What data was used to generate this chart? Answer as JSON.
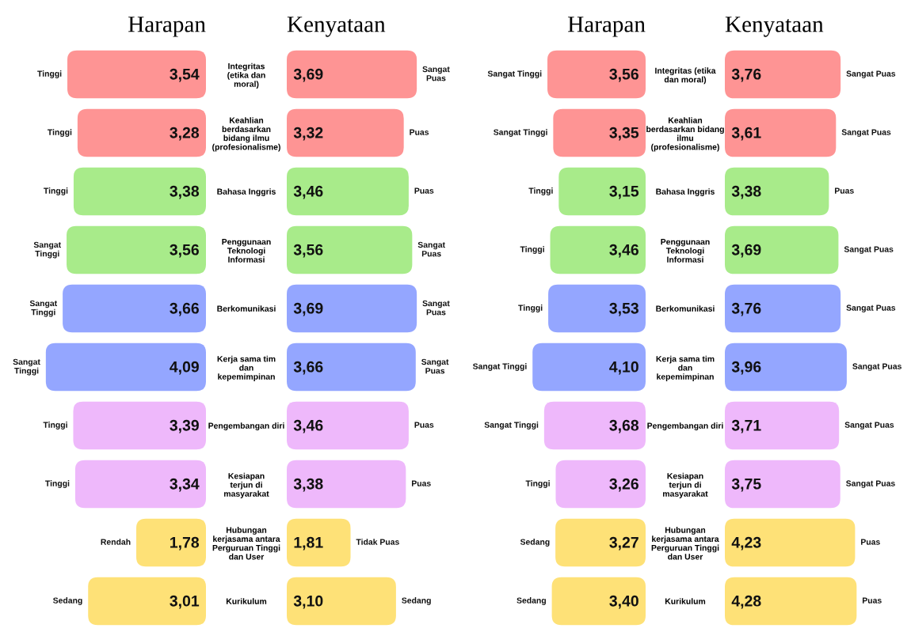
{
  "chart_data": [
    {
      "type": "bar",
      "orientation": "horizontal",
      "title": "Harapan",
      "tick_labels": "y",
      "categories": [
        "Integritas\n(etika dan\nmoral)",
        "Keahlian\nberdasarkan\nbidang ilmu\n(profesionalisme)",
        "Bahasa Inggris",
        "Penggunaan\nTeknologi\nInformasi",
        "Berkomunikasi",
        "Kerja sama tim\ndan\nkepemimpinan",
        "Pengembangan diri",
        "Kesiapan\nterjun di\nmasyarakat",
        "Hubungan\nkerjasama antara\nPerguruan Tinggi\ndan User",
        "Kurikulum"
      ],
      "values": [
        3.54,
        3.28,
        3.38,
        3.56,
        3.66,
        4.09,
        3.39,
        3.34,
        1.78,
        3.01
      ],
      "value_labels": [
        "3,54",
        "3,28",
        "3,38",
        "3,56",
        "3,66",
        "4,09",
        "3,39",
        "3,34",
        "1,78",
        "3,01"
      ],
      "colors": [
        "#fe9494",
        "#fe9494",
        "#a8eb8a",
        "#a8eb8a",
        "#94a6ff",
        "#94a6ff",
        "#eeb8fb",
        "#eeb8fb",
        "#fee177",
        "#fee177"
      ],
      "annotations": [
        {
          "text": "Tinggi",
          "x": 3.54,
          "y": "Integritas\n(etika dan\nmoral)"
        },
        {
          "text": "Tinggi",
          "x": 3.28,
          "y": "Keahlian\nberdasarkan\nbidang ilmu\n(profesionalisme)"
        },
        {
          "text": "Tinggi",
          "x": 3.38,
          "y": "Bahasa Inggris"
        },
        {
          "text": "Sangat\nTinggi",
          "x": 3.56,
          "y": "Penggunaan\nTeknologi\nInformasi"
        },
        {
          "text": "Sangat\nTinggi",
          "x": 3.66,
          "y": "Berkomunikasi"
        },
        {
          "text": "Sangat\nTinggi",
          "x": 4.09,
          "y": "Kerja sama tim\ndan\nkepemimpinan"
        },
        {
          "text": "Tinggi",
          "x": 3.39,
          "y": "Pengembangan diri"
        },
        {
          "text": "Tinggi",
          "x": 3.34,
          "y": "Kesiapan\nterjun di\nmasyarakat"
        },
        {
          "text": "Rendah",
          "x": 1.78,
          "y": "Hubungan\nkerjasama antara\nPerguruan Tinggi\ndan User"
        },
        {
          "text": "Sedang",
          "x": 3.01,
          "y": "Kurikulum"
        }
      ]
    },
    {
      "type": "bar",
      "orientation": "horizontal",
      "title": "Kenyataan",
      "tick_labels": false,
      "categories": [
        "Integritas\n(etika dan\nmoral)",
        "Keahlian\nberdasarkan\nbidang ilmu\n(profesionalisme)",
        "Bahasa Inggris",
        "Penggunaan\nTeknologi\nInformasi",
        "Berkomunikasi",
        "Kerja sama tim\ndan\nkepemimpinan",
        "Pengembangan diri",
        "Kesiapan\nterjun di\nmasyarakat",
        "Hubungan\nkerjasama antara\nPerguruan Tinggi\ndan User",
        "Kurikulum"
      ],
      "values": [
        3.69,
        3.32,
        3.46,
        3.56,
        3.69,
        3.66,
        3.46,
        3.38,
        1.81,
        3.1
      ],
      "value_labels": [
        "3,69",
        "3,32",
        "3,46",
        "3,56",
        "3,69",
        "3,66",
        "3,46",
        "3,38",
        "1,81",
        "3,10"
      ],
      "colors": [
        "#fe9494",
        "#fe9494",
        "#a8eb8a",
        "#a8eb8a",
        "#94a6ff",
        "#94a6ff",
        "#eeb8fb",
        "#eeb8fb",
        "#fee177",
        "#fee177"
      ],
      "annotations": [
        {
          "text": "Sangat\nPuas",
          "x": 3.69,
          "y": "Integritas\n(etika dan\nmoral)"
        },
        {
          "text": "Puas",
          "x": 3.32,
          "y": "Keahlian\nberdasarkan\nbidang ilmu\n(profesionalisme)"
        },
        {
          "text": "Puas",
          "x": 3.46,
          "y": "Bahasa Inggris"
        },
        {
          "text": "Sangat\nPuas",
          "x": 3.56,
          "y": "Penggunaan\nTeknologi\nInformasi"
        },
        {
          "text": "Sangat\nPuas",
          "x": 3.69,
          "y": "Berkomunikasi"
        },
        {
          "text": "Sangat\nPuas",
          "x": 3.66,
          "y": "Kerja sama tim\ndan\nkepemimpinan"
        },
        {
          "text": "Puas",
          "x": 3.46,
          "y": "Pengembangan diri"
        },
        {
          "text": "Puas",
          "x": 3.38,
          "y": "Kesiapan\nterjun di\nmasyarakat"
        },
        {
          "text": "Tidak Puas",
          "x": 1.81,
          "y": "Hubungan\nkerjasama antara\nPerguruan Tinggi\ndan User"
        },
        {
          "text": "Sedang",
          "x": 3.1,
          "y": "Kurikulum"
        }
      ]
    },
    {
      "type": "bar",
      "orientation": "horizontal",
      "title": "Harapan",
      "tick_labels": "y",
      "categories": [
        "Integritas (etika\ndan moral)",
        "Keahlian\nberdasarkan bidang\nilmu\n(profesionalisme)",
        "Bahasa Inggris",
        "Penggunaan\nTeknologi\nInformasi",
        "Berkomunikasi",
        "Kerja sama tim\ndan\nkepemimpinan",
        "Pengembangan diri",
        "Kesiapan\nterjun di\nmasyarakat",
        "Hubungan\nkerjasama antara\nPerguruan Tinggi\ndan User",
        "Kurikulum"
      ],
      "values": [
        3.56,
        3.35,
        3.15,
        3.46,
        3.53,
        4.1,
        3.68,
        3.26,
        3.27,
        3.4
      ],
      "value_labels": [
        "3,56",
        "3,35",
        "3,15",
        "3,46",
        "3,53",
        "4,10",
        "3,68",
        "3,26",
        "3,27",
        "3,40"
      ],
      "colors": [
        "#fe9494",
        "#fe9494",
        "#a8eb8a",
        "#a8eb8a",
        "#94a6ff",
        "#94a6ff",
        "#eeb8fb",
        "#eeb8fb",
        "#fee177",
        "#fee177"
      ],
      "annotations": [
        {
          "text": "Sangat Tinggi",
          "x": 3.56,
          "y": "Integritas (etika\ndan moral)"
        },
        {
          "text": "Sangat Tinggi",
          "x": 3.35,
          "y": "Keahlian\nberdasarkan bidang\nilmu\n(profesionalisme)"
        },
        {
          "text": "Tinggi",
          "x": 3.15,
          "y": "Bahasa Inggris"
        },
        {
          "text": "Tinggi",
          "x": 3.46,
          "y": "Penggunaan\nTeknologi\nInformasi"
        },
        {
          "text": "Tinggi",
          "x": 3.53,
          "y": "Berkomunikasi"
        },
        {
          "text": "Sangat Tinggi",
          "x": 4.1,
          "y": "Kerja sama tim\ndan\nkepemimpinan"
        },
        {
          "text": "Sangat Tinggi",
          "x": 3.68,
          "y": "Pengembangan diri"
        },
        {
          "text": "Tinggi",
          "x": 3.26,
          "y": "Kesiapan\nterjun di\nmasyarakat"
        },
        {
          "text": "Sedang",
          "x": 3.27,
          "y": "Hubungan\nkerjasama antara\nPerguruan Tinggi\ndan User"
        },
        {
          "text": "Sedang",
          "x": 3.4,
          "y": "Kurikulum"
        }
      ]
    },
    {
      "type": "bar",
      "orientation": "horizontal",
      "title": "Kenyataan",
      "tick_labels": false,
      "categories": [
        "Integritas (etika\ndan moral)",
        "Keahlian\nberdasarkan bidang\nilmu\n(profesionalisme)",
        "Bahasa Inggris",
        "Penggunaan\nTeknologi\nInformasi",
        "Berkomunikasi",
        "Kerja sama tim\ndan\nkepemimpinan",
        "Pengembangan diri",
        "Kesiapan\nterjun di\nmasyarakat",
        "Hubungan\nkerjasama antara\nPerguruan Tinggi\ndan User",
        "Kurikulum"
      ],
      "values": [
        3.76,
        3.61,
        3.38,
        3.69,
        3.76,
        3.96,
        3.71,
        3.75,
        4.23,
        4.28
      ],
      "value_labels": [
        "3,76",
        "3,61",
        "3,38",
        "3,69",
        "3,76",
        "3,96",
        "3,71",
        "3,75",
        "4,23",
        "4,28"
      ],
      "colors": [
        "#fe9494",
        "#fe9494",
        "#a8eb8a",
        "#a8eb8a",
        "#94a6ff",
        "#94a6ff",
        "#eeb8fb",
        "#eeb8fb",
        "#fee177",
        "#fee177"
      ],
      "annotations": [
        {
          "text": "Sangat Puas",
          "x": 3.76,
          "y": "Integritas (etika\ndan moral)"
        },
        {
          "text": "Sangat Puas",
          "x": 3.61,
          "y": "Keahlian\nberdasarkan bidang\nilmu\n(profesionalisme)"
        },
        {
          "text": "Puas",
          "x": 3.38,
          "y": "Bahasa Inggris"
        },
        {
          "text": "Sangat Puas",
          "x": 3.69,
          "y": "Penggunaan\nTeknologi\nInformasi"
        },
        {
          "text": "Sangat Puas",
          "x": 3.76,
          "y": "Berkomunikasi"
        },
        {
          "text": "Sangat Puas",
          "x": 3.96,
          "y": "Kerja sama tim\ndan\nkepemimpinan"
        },
        {
          "text": "Sangat Puas",
          "x": 3.71,
          "y": "Pengembangan diri"
        },
        {
          "text": "Sangat Puas",
          "x": 3.75,
          "y": "Kesiapan\nterjun di\nmasyarakat"
        },
        {
          "text": "Puas",
          "x": 4.23,
          "y": "Hubungan\nkerjasama antara\nPerguruan Tinggi\ndan User"
        },
        {
          "text": "Puas",
          "x": 4.28,
          "y": "Kurikulum"
        }
      ]
    }
  ]
}
